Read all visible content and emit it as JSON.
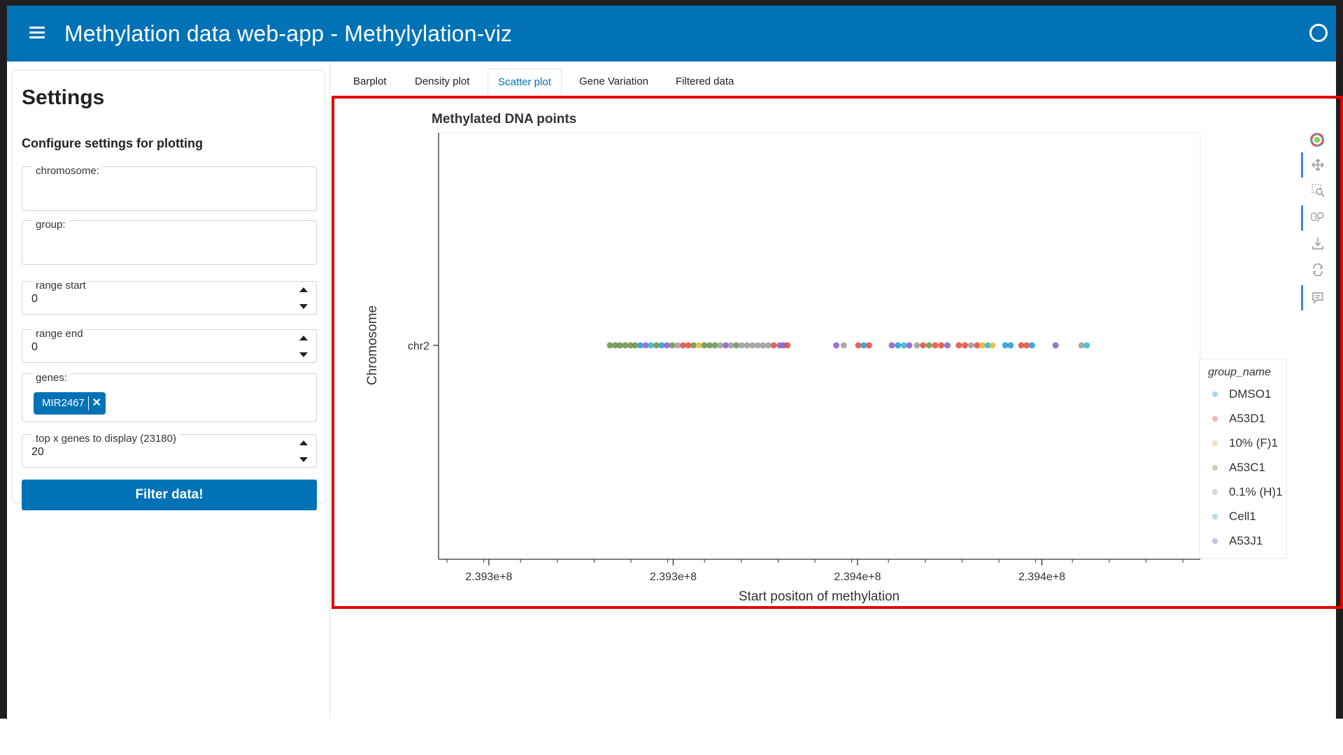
{
  "header": {
    "title": "Methylation data web-app - Methylylation-viz"
  },
  "sidebar": {
    "title": "Settings",
    "subtitle": "Configure settings for plotting",
    "fields": {
      "chromosome": {
        "label": "chromosome:",
        "value": ""
      },
      "group": {
        "label": "group:",
        "value": ""
      },
      "range_start": {
        "label": "range start",
        "value": "0"
      },
      "range_end": {
        "label": "range end",
        "value": "0"
      },
      "genes": {
        "label": "genes:",
        "chips": [
          "MIR2467"
        ]
      },
      "top_x": {
        "label": "top x genes to display (23180)",
        "value": "20"
      }
    },
    "filter_button": "Filter data!"
  },
  "tabs": [
    "Barplot",
    "Density plot",
    "Scatter plot",
    "Gene Variation",
    "Filtered data"
  ],
  "active_tab": "Scatter plot",
  "toolbar": [
    "bokeh-logo-icon",
    "pan-icon",
    "box-zoom-icon",
    "wheel-zoom-icon",
    "save-icon",
    "reset-icon",
    "hover-icon"
  ],
  "chart_data": {
    "type": "scatter",
    "title": "Methylated DNA points",
    "xlabel": "Start positon of methylation",
    "ylabel": "Chromosome",
    "x_ticks": [
      "2.393e+8",
      "2.393e+8",
      "2.394e+8",
      "2.394e+8"
    ],
    "y_categories": [
      "chr2"
    ],
    "grid": false,
    "legend": {
      "title": "group_name",
      "placement": "right",
      "entries": [
        "DMSO1",
        "A53D1",
        "10% (F)1",
        "A53C1",
        "0.1% (H)1",
        "Cell1",
        "A53J1"
      ]
    },
    "series_colors": {
      "DMSO1": "#1f9ad6",
      "A53D1": "#e04a3c",
      "10% (F)1": "#e3b53a",
      "A53C1": "#6a8f4a",
      "0.1% (H)1": "#9a9a9a",
      "Cell1": "#29b8c9",
      "A53J1": "#8a5cc9"
    },
    "x_range_fraction": [
      0.0,
      1.0
    ],
    "points": [
      {
        "x": 0.225,
        "g": "A53C1"
      },
      {
        "x": 0.232,
        "g": "A53C1"
      },
      {
        "x": 0.238,
        "g": "A53C1"
      },
      {
        "x": 0.245,
        "g": "A53C1"
      },
      {
        "x": 0.252,
        "g": "A53C1"
      },
      {
        "x": 0.258,
        "g": "A53C1"
      },
      {
        "x": 0.265,
        "g": "DMSO1"
      },
      {
        "x": 0.272,
        "g": "A53J1"
      },
      {
        "x": 0.279,
        "g": "Cell1"
      },
      {
        "x": 0.286,
        "g": "A53C1"
      },
      {
        "x": 0.293,
        "g": "DMSO1"
      },
      {
        "x": 0.3,
        "g": "A53J1"
      },
      {
        "x": 0.307,
        "g": "A53C1"
      },
      {
        "x": 0.314,
        "g": "0.1% (H)1"
      },
      {
        "x": 0.321,
        "g": "A53D1"
      },
      {
        "x": 0.328,
        "g": "A53D1"
      },
      {
        "x": 0.335,
        "g": "A53C1"
      },
      {
        "x": 0.342,
        "g": "10% (F)1"
      },
      {
        "x": 0.349,
        "g": "A53C1"
      },
      {
        "x": 0.356,
        "g": "A53C1"
      },
      {
        "x": 0.363,
        "g": "A53C1"
      },
      {
        "x": 0.37,
        "g": "0.1% (H)1"
      },
      {
        "x": 0.377,
        "g": "A53J1"
      },
      {
        "x": 0.384,
        "g": "0.1% (H)1"
      },
      {
        "x": 0.391,
        "g": "A53C1"
      },
      {
        "x": 0.398,
        "g": "0.1% (H)1"
      },
      {
        "x": 0.405,
        "g": "0.1% (H)1"
      },
      {
        "x": 0.412,
        "g": "0.1% (H)1"
      },
      {
        "x": 0.419,
        "g": "0.1% (H)1"
      },
      {
        "x": 0.426,
        "g": "0.1% (H)1"
      },
      {
        "x": 0.433,
        "g": "0.1% (H)1"
      },
      {
        "x": 0.44,
        "g": "A53D1"
      },
      {
        "x": 0.448,
        "g": "A53J1"
      },
      {
        "x": 0.453,
        "g": "A53J1"
      },
      {
        "x": 0.458,
        "g": "A53D1"
      },
      {
        "x": 0.522,
        "g": "A53J1"
      },
      {
        "x": 0.532,
        "g": "0.1% (H)1"
      },
      {
        "x": 0.551,
        "g": "A53D1"
      },
      {
        "x": 0.558,
        "g": "DMSO1"
      },
      {
        "x": 0.565,
        "g": "A53D1"
      },
      {
        "x": 0.595,
        "g": "A53J1"
      },
      {
        "x": 0.603,
        "g": "DMSO1"
      },
      {
        "x": 0.611,
        "g": "Cell1"
      },
      {
        "x": 0.618,
        "g": "A53J1"
      },
      {
        "x": 0.628,
        "g": "0.1% (H)1"
      },
      {
        "x": 0.636,
        "g": "A53D1"
      },
      {
        "x": 0.644,
        "g": "A53C1"
      },
      {
        "x": 0.652,
        "g": "A53D1"
      },
      {
        "x": 0.66,
        "g": "A53D1"
      },
      {
        "x": 0.668,
        "g": "A53J1"
      },
      {
        "x": 0.683,
        "g": "A53D1"
      },
      {
        "x": 0.691,
        "g": "A53D1"
      },
      {
        "x": 0.699,
        "g": "0.1% (H)1"
      },
      {
        "x": 0.707,
        "g": "A53D1"
      },
      {
        "x": 0.714,
        "g": "10% (F)1"
      },
      {
        "x": 0.721,
        "g": "Cell1"
      },
      {
        "x": 0.727,
        "g": "10% (F)1"
      },
      {
        "x": 0.744,
        "g": "DMSO1"
      },
      {
        "x": 0.751,
        "g": "DMSO1"
      },
      {
        "x": 0.765,
        "g": "A53D1"
      },
      {
        "x": 0.772,
        "g": "A53D1"
      },
      {
        "x": 0.779,
        "g": "DMSO1"
      },
      {
        "x": 0.81,
        "g": "A53J1"
      },
      {
        "x": 0.844,
        "g": "0.1% (H)1"
      },
      {
        "x": 0.851,
        "g": "Cell1"
      }
    ]
  }
}
